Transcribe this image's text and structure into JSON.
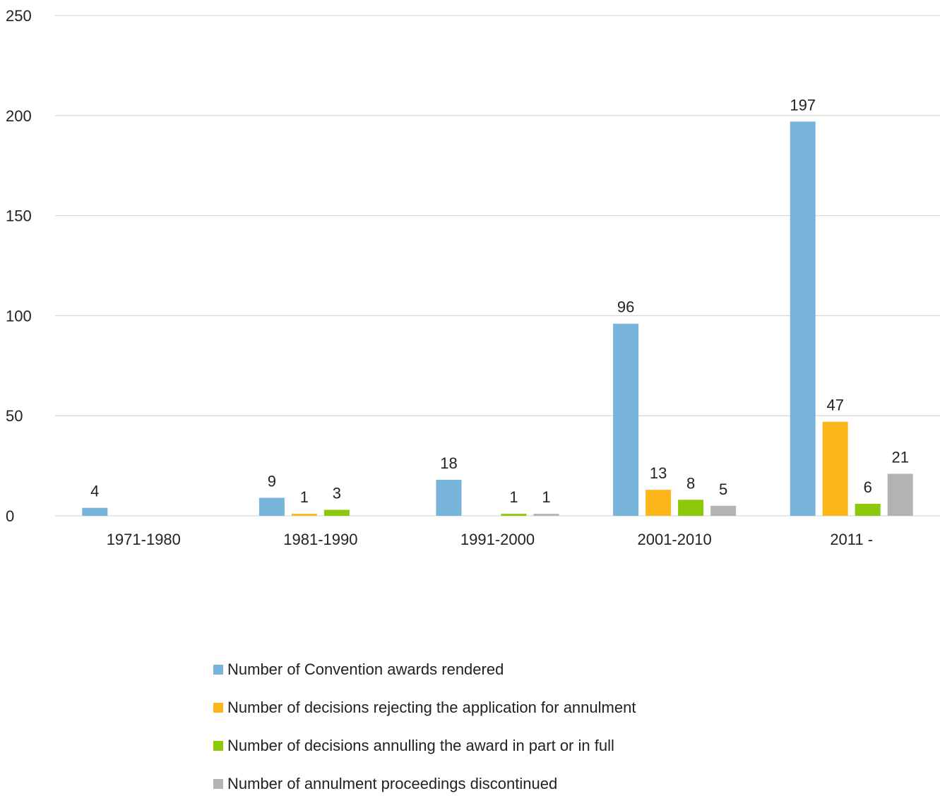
{
  "chart_data": {
    "type": "bar",
    "categories": [
      "1971-1980",
      "1981-1990",
      "1991-2000",
      "2001-2010",
      "2011 -"
    ],
    "series": [
      {
        "name": "Number of Convention awards rendered",
        "color": "#79B4DB",
        "values": [
          4,
          9,
          18,
          96,
          197
        ],
        "labels": [
          "4",
          "9",
          "18",
          "96",
          "197"
        ]
      },
      {
        "name": "Number of decisions rejecting the application for annulment",
        "color": "#FCB61A",
        "values": [
          0,
          1,
          0,
          13,
          47
        ],
        "labels": [
          "",
          "1",
          "",
          "13",
          "47"
        ]
      },
      {
        "name": "Number of decisions annulling the award in part or in full",
        "color": "#8CC90A",
        "values": [
          0,
          3,
          1,
          8,
          6
        ],
        "labels": [
          "",
          "3",
          "1",
          "8",
          "6"
        ]
      },
      {
        "name": "Number of annulment proceedings discontinued",
        "color": "#B3B3B3",
        "values": [
          0,
          0,
          1,
          5,
          21
        ],
        "labels": [
          "",
          "",
          "1",
          "5",
          "21"
        ]
      }
    ],
    "ylim": [
      0,
      250
    ],
    "yticks": [
      "0",
      "50",
      "100",
      "150",
      "200",
      "250"
    ],
    "grid": true,
    "legend_position": "bottom"
  }
}
